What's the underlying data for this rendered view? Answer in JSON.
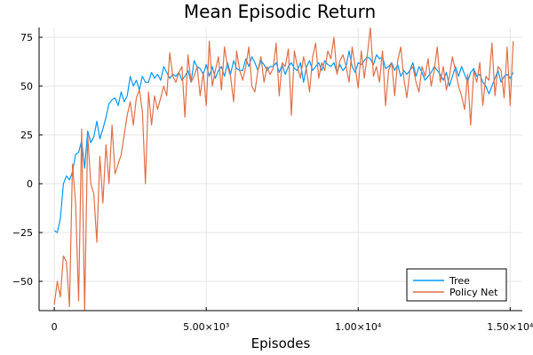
{
  "chart_data": {
    "type": "line",
    "title": "Mean Episodic Return",
    "xlabel": "Episodes",
    "ylabel": "",
    "xlim": [
      -500,
      15400
    ],
    "ylim": [
      -65,
      80
    ],
    "xticks": [
      {
        "value": 0,
        "label": "0"
      },
      {
        "value": 5000,
        "label": "5.00×10³"
      },
      {
        "value": 10000,
        "label": "1.00×10⁴"
      },
      {
        "value": 15000,
        "label": "1.50×10⁴"
      }
    ],
    "yticks": [
      {
        "value": -50,
        "label": "−50"
      },
      {
        "value": -25,
        "label": "−25"
      },
      {
        "value": 0,
        "label": "0"
      },
      {
        "value": 25,
        "label": "25"
      },
      {
        "value": 50,
        "label": "50"
      },
      {
        "value": 75,
        "label": "75"
      }
    ],
    "grid": true,
    "legend_position": "bottom-right",
    "series": [
      {
        "name": "Tree",
        "color": "#009AFA",
        "x": [
          0,
          100,
          200,
          300,
          400,
          500,
          600,
          700,
          800,
          900,
          1000,
          1100,
          1200,
          1300,
          1400,
          1500,
          1600,
          1700,
          1800,
          1900,
          2000,
          2100,
          2200,
          2300,
          2400,
          2500,
          2600,
          2700,
          2800,
          2900,
          3000,
          3100,
          3200,
          3300,
          3400,
          3500,
          3600,
          3700,
          3800,
          3900,
          4000,
          4100,
          4200,
          4300,
          4400,
          4500,
          4600,
          4700,
          4800,
          4900,
          5000,
          5100,
          5200,
          5300,
          5400,
          5500,
          5600,
          5700,
          5800,
          5900,
          6000,
          6100,
          6200,
          6300,
          6400,
          6500,
          6600,
          6700,
          6800,
          6900,
          7000,
          7100,
          7200,
          7300,
          7400,
          7500,
          7600,
          7700,
          7800,
          7900,
          8000,
          8100,
          8200,
          8300,
          8400,
          8500,
          8600,
          8700,
          8800,
          8900,
          9000,
          9100,
          9200,
          9300,
          9400,
          9500,
          9600,
          9700,
          9800,
          9900,
          10000,
          10100,
          10200,
          10300,
          10400,
          10500,
          10600,
          10700,
          10800,
          10900,
          11000,
          11100,
          11200,
          11300,
          11400,
          11500,
          11600,
          11700,
          11800,
          11900,
          12000,
          12100,
          12200,
          12300,
          12400,
          12500,
          12600,
          12700,
          12800,
          12900,
          13000,
          13100,
          13200,
          13300,
          13400,
          13500,
          13600,
          13700,
          13800,
          13900,
          14000,
          14100,
          14200,
          14300,
          14400,
          14500,
          14600,
          14700,
          14800,
          14900,
          15000,
          15100
        ],
        "y": [
          -24,
          -25,
          -18,
          0,
          4,
          2,
          6,
          15,
          16,
          22,
          8,
          27,
          21,
          24,
          32,
          23,
          28,
          34,
          41,
          43,
          44,
          40,
          47,
          42,
          45,
          55,
          50,
          53,
          48,
          55,
          52,
          52,
          57,
          54,
          56,
          53,
          60,
          57,
          54,
          56,
          55,
          57,
          53,
          55,
          58,
          52,
          63,
          60,
          59,
          56,
          61,
          55,
          60,
          54,
          58,
          60,
          55,
          62,
          56,
          63,
          59,
          58,
          58,
          64,
          60,
          65,
          62,
          58,
          63,
          61,
          58,
          60,
          60,
          62,
          57,
          61,
          56,
          60,
          62,
          59,
          58,
          62,
          52,
          60,
          63,
          58,
          60,
          62,
          58,
          63,
          61,
          60,
          62,
          57,
          61,
          58,
          60,
          68,
          60,
          57,
          62,
          61,
          63,
          65,
          64,
          61,
          66,
          64,
          65,
          59,
          60,
          62,
          58,
          61,
          55,
          58,
          56,
          58,
          62,
          55,
          60,
          57,
          53,
          55,
          57,
          60,
          58,
          56,
          53,
          57,
          50,
          55,
          60,
          55,
          60,
          56,
          52,
          57,
          59,
          55,
          56,
          52,
          50,
          46,
          50,
          54,
          58,
          52,
          55,
          56,
          54,
          57
        ],
        "x_end": 15100
      },
      {
        "name": "Policy Net",
        "color": "#E26F46",
        "x": [
          0,
          100,
          200,
          300,
          400,
          500,
          600,
          700,
          800,
          900,
          1000,
          1100,
          1200,
          1300,
          1400,
          1500,
          1600,
          1700,
          1800,
          1900,
          2000,
          2100,
          2200,
          2300,
          2400,
          2500,
          2600,
          2700,
          2800,
          2900,
          3000,
          3100,
          3200,
          3300,
          3400,
          3500,
          3600,
          3700,
          3800,
          3900,
          4000,
          4100,
          4200,
          4300,
          4400,
          4500,
          4600,
          4700,
          4800,
          4900,
          5000,
          5100,
          5200,
          5300,
          5400,
          5500,
          5600,
          5700,
          5800,
          5900,
          6000,
          6100,
          6200,
          6300,
          6400,
          6500,
          6600,
          6700,
          6800,
          6900,
          7000,
          7100,
          7200,
          7300,
          7400,
          7500,
          7600,
          7700,
          7800,
          7900,
          8000,
          8100,
          8200,
          8300,
          8400,
          8500,
          8600,
          8700,
          8800,
          8900,
          9000,
          9100,
          9200,
          9300,
          9400,
          9500,
          9600,
          9700,
          9800,
          9900,
          10000,
          10100,
          10200,
          10300,
          10400,
          10500,
          10600,
          10700,
          10800,
          10900,
          11000,
          11100,
          11200,
          11300,
          11400,
          11500,
          11600,
          11700,
          11800,
          11900,
          12000,
          12100,
          12200,
          12300,
          12400,
          12500,
          12600,
          12700,
          12800,
          12900,
          13000,
          13100,
          13200,
          13300,
          13400,
          13500,
          13600,
          13700,
          13800,
          13900,
          14000,
          14100,
          14200,
          14300,
          14400,
          14500,
          14600,
          14700,
          14800,
          14900,
          15000,
          15100
        ],
        "y": [
          -62,
          -50,
          -58,
          -37,
          -40,
          -63,
          10,
          -10,
          -60,
          28,
          -65,
          25,
          0,
          -5,
          -30,
          14,
          -10,
          20,
          0,
          30,
          5,
          10,
          15,
          25,
          35,
          42,
          30,
          44,
          48,
          37,
          0,
          47,
          30,
          45,
          38,
          44,
          50,
          45,
          67,
          55,
          52,
          57,
          60,
          34,
          66,
          52,
          55,
          60,
          45,
          57,
          40,
          73,
          50,
          58,
          65,
          48,
          70,
          60,
          55,
          42,
          68,
          58,
          53,
          60,
          70,
          50,
          47,
          58,
          65,
          52,
          60,
          56,
          59,
          72,
          45,
          62,
          60,
          69,
          35,
          68,
          60,
          54,
          65,
          58,
          47,
          65,
          72,
          54,
          62,
          58,
          68,
          64,
          75,
          56,
          63,
          66,
          60,
          52,
          70,
          60,
          49,
          68,
          54,
          66,
          80,
          55,
          60,
          52,
          68,
          40,
          58,
          62,
          45,
          63,
          70,
          54,
          44,
          58,
          60,
          52,
          47,
          60,
          55,
          64,
          50,
          58,
          70,
          52,
          60,
          48,
          55,
          65,
          58,
          50,
          45,
          38,
          56,
          30,
          58,
          52,
          62,
          40,
          55,
          53,
          72,
          45,
          60,
          58,
          44,
          70,
          40,
          73
        ],
        "x_end": 15100
      }
    ]
  }
}
